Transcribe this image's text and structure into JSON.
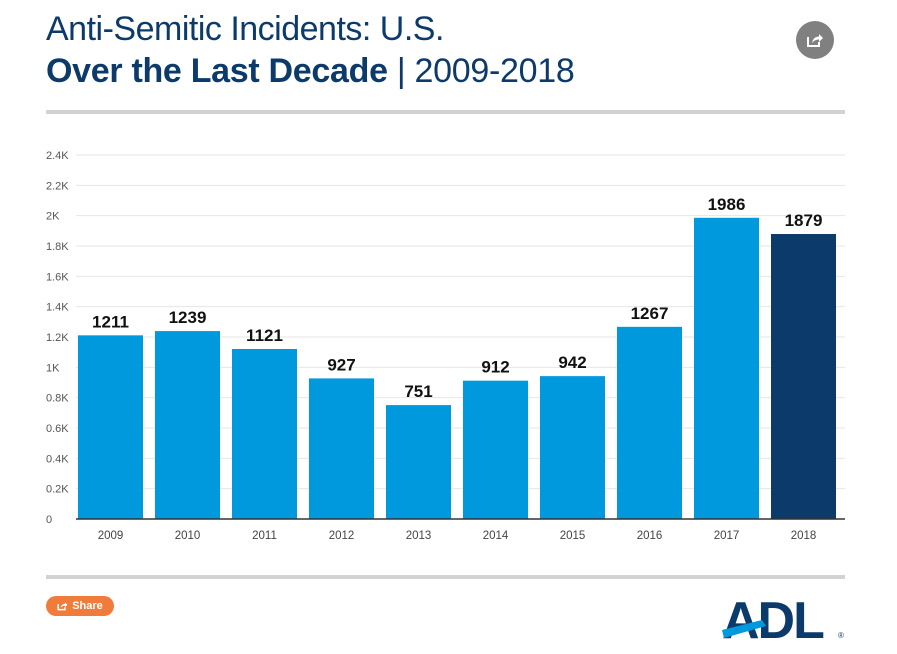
{
  "header": {
    "title_line1": "Anti-Semitic Incidents: U.S.",
    "title_bold": "Over the Last Decade",
    "title_sep": " | ",
    "title_range": "2009-2018"
  },
  "share_button": {
    "label": "Share"
  },
  "icons": {
    "top_share": "share-icon",
    "pill_share": "share-icon"
  },
  "colors": {
    "bar": "#0099dd",
    "highlight": "#0b3a6b",
    "grid": "#e6e6e6",
    "axis": "#333333",
    "share": "#f07c3c"
  },
  "logo": {
    "text": "ADL",
    "mark": "®"
  },
  "chart_data": {
    "type": "bar",
    "title": "",
    "xlabel": "",
    "ylabel": "",
    "categories": [
      "2009",
      "2010",
      "2011",
      "2012",
      "2013",
      "2014",
      "2015",
      "2016",
      "2017",
      "2018"
    ],
    "values": [
      1211,
      1239,
      1121,
      927,
      751,
      912,
      942,
      1267,
      1986,
      1879
    ],
    "data_labels": [
      "1211",
      "1239",
      "1121",
      "927",
      "751",
      "912",
      "942",
      "1267",
      "1986",
      "1879"
    ],
    "ylim": [
      0,
      2400
    ],
    "yticks": [
      0,
      200,
      400,
      600,
      800,
      1000,
      1200,
      1400,
      1600,
      1800,
      2000,
      2200,
      2400
    ],
    "ytick_labels": [
      "0",
      "0.2K",
      "0.4K",
      "0.6K",
      "0.8K",
      "1K",
      "1.2K",
      "1.4K",
      "1.6K",
      "1.8K",
      "2K",
      "2.2K",
      "2.4K"
    ],
    "highlight_category": "2018",
    "grid": true
  }
}
